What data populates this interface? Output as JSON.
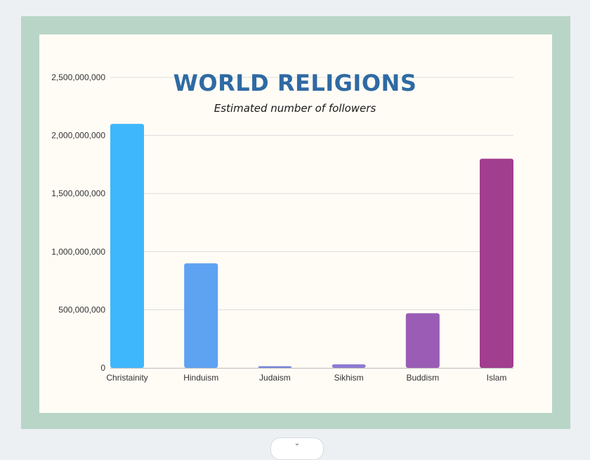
{
  "chart_data": {
    "type": "bar",
    "title": "WORLD RELIGIONS",
    "subtitle": "Estimated number of followers",
    "categories": [
      "Christainity",
      "Hinduism",
      "Judaism",
      "Sikhism",
      "Buddism",
      "Islam"
    ],
    "values": [
      2100000000,
      900000000,
      14000000,
      30000000,
      470000000,
      1800000000
    ],
    "colors": [
      "#3fb7fc",
      "#5ea2f2",
      "#7a86da",
      "#8d7bd2",
      "#9a5cb5",
      "#a13e8e"
    ],
    "ylim": [
      0,
      2500000000
    ],
    "yticks": [
      "0",
      "500,000,000",
      "1,000,000,000",
      "1,500,000,000",
      "2,000,000,000",
      "2,500,000,000"
    ],
    "grid": true,
    "legend": "none"
  },
  "page": {
    "chevron": "⌄"
  }
}
